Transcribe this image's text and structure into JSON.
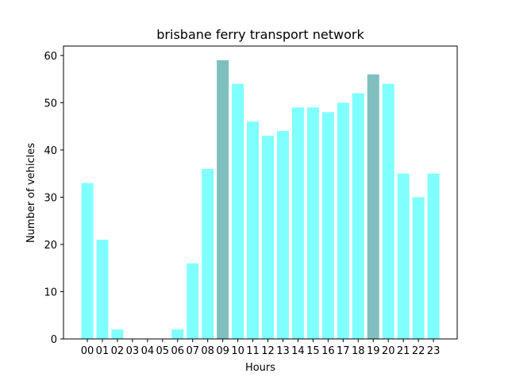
{
  "chart_data": {
    "type": "bar",
    "title": "brisbane ferry transport network",
    "xlabel": "Hours",
    "ylabel": "Number of vehicles",
    "categories": [
      "00",
      "01",
      "02",
      "03",
      "04",
      "05",
      "06",
      "07",
      "08",
      "09",
      "10",
      "11",
      "12",
      "13",
      "14",
      "15",
      "16",
      "17",
      "18",
      "19",
      "20",
      "21",
      "22",
      "23"
    ],
    "values": [
      33,
      21,
      2,
      0,
      0,
      0,
      2,
      16,
      36,
      59,
      54,
      46,
      43,
      44,
      49,
      49,
      48,
      50,
      52,
      56,
      54,
      35,
      30,
      35
    ],
    "highlighted": [
      "09",
      "19"
    ],
    "colors": {
      "bar": "#80ffff",
      "highlight": "#80bfbf",
      "axis": "#000000"
    },
    "ylim": [
      0,
      62
    ],
    "yticks": [
      0,
      10,
      20,
      30,
      40,
      50,
      60
    ],
    "grid": false,
    "legend": "none"
  }
}
